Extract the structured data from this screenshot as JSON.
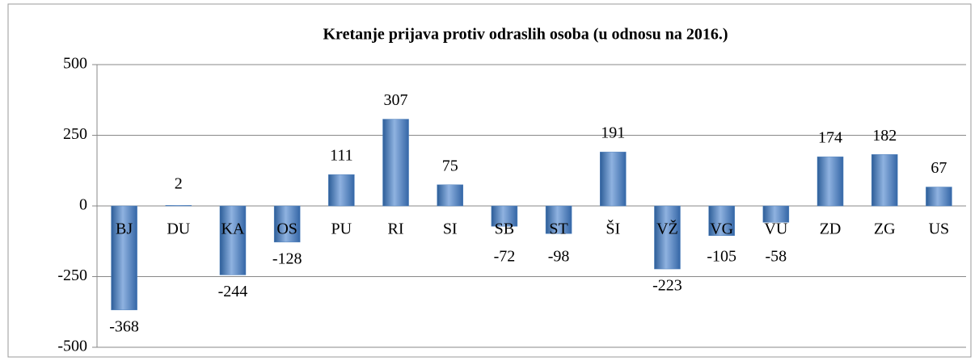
{
  "chart_data": {
    "type": "bar",
    "title": "Kretanje prijava protiv odraslih osoba (u odnosu na 2016.)",
    "categories": [
      "BJ",
      "DU",
      "KA",
      "OS",
      "PU",
      "RI",
      "SI",
      "SB",
      "ST",
      "ŠI",
      "VŽ",
      "VG",
      "VU",
      "ZD",
      "ZG",
      "US"
    ],
    "values": [
      -368,
      2,
      -244,
      -128,
      111,
      307,
      75,
      -72,
      -98,
      191,
      -223,
      -105,
      -58,
      174,
      182,
      67
    ],
    "color": "#4f81bd",
    "ylim": [
      -500,
      500
    ],
    "yticks": [
      -500,
      -250,
      0,
      250,
      500
    ],
    "grid": true
  }
}
